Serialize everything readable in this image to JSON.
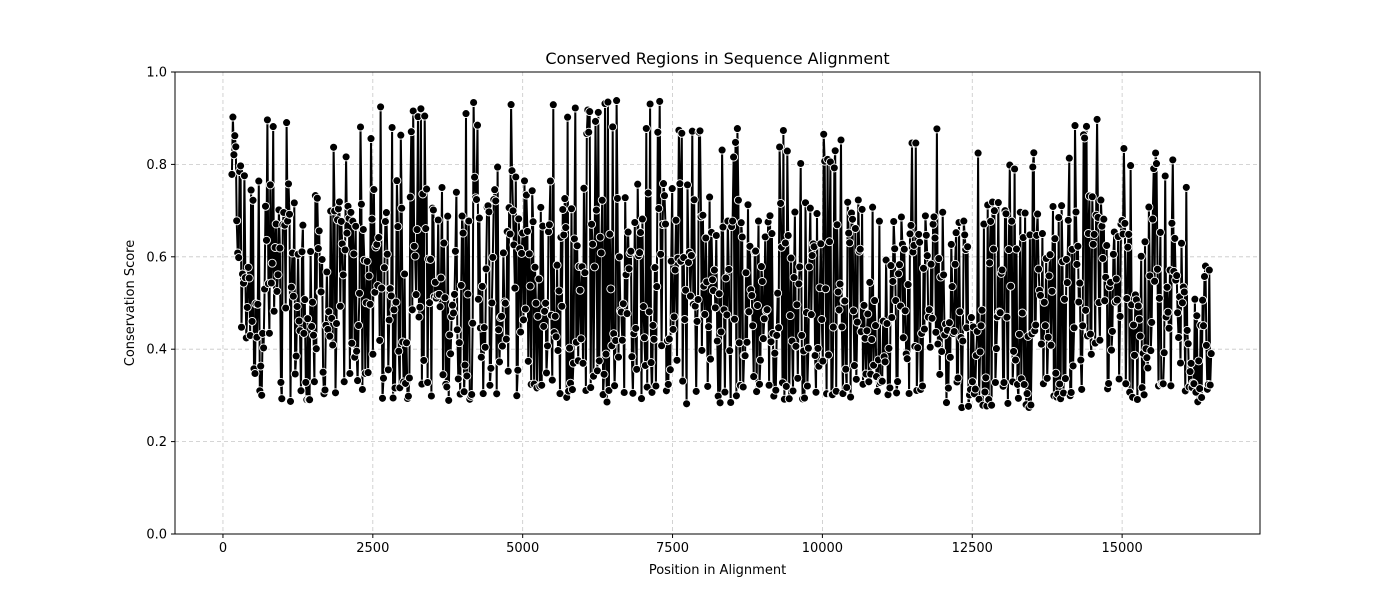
{
  "chart_data": {
    "type": "scatter",
    "title": "Conserved Regions in Sequence Alignment",
    "xlabel": "Position in Alignment",
    "ylabel": "Conservation Score",
    "xlim": [
      -800,
      17300
    ],
    "ylim": [
      0.0,
      1.0
    ],
    "xticks": [
      0,
      2500,
      5000,
      7500,
      10000,
      12500,
      15000
    ],
    "yticks": [
      0.0,
      0.2,
      0.4,
      0.6,
      0.8,
      1.0
    ],
    "x_range": [
      150,
      16500
    ],
    "grid": true,
    "marker_style": "lines-with-circle-markers",
    "series": [
      {
        "color": "#000000",
        "edge_color": "#ffffff",
        "envelope": [
          {
            "x": 150,
            "min": 0.72,
            "max": 0.97
          },
          {
            "x": 350,
            "min": 0.35,
            "max": 1.0
          },
          {
            "x": 500,
            "min": 0.3,
            "max": 0.96
          },
          {
            "x": 1000,
            "min": 0.28,
            "max": 0.92
          },
          {
            "x": 2000,
            "min": 0.29,
            "max": 0.86
          },
          {
            "x": 2500,
            "min": 0.29,
            "max": 0.94
          },
          {
            "x": 3500,
            "min": 0.28,
            "max": 0.92
          },
          {
            "x": 4600,
            "min": 0.29,
            "max": 0.96
          },
          {
            "x": 5300,
            "min": 0.29,
            "max": 0.94
          },
          {
            "x": 6700,
            "min": 0.28,
            "max": 0.94
          },
          {
            "x": 7500,
            "min": 0.28,
            "max": 0.94
          },
          {
            "x": 8500,
            "min": 0.28,
            "max": 0.89
          },
          {
            "x": 10000,
            "min": 0.29,
            "max": 0.87
          },
          {
            "x": 11000,
            "min": 0.3,
            "max": 0.86
          },
          {
            "x": 12500,
            "min": 0.27,
            "max": 0.89
          },
          {
            "x": 13200,
            "min": 0.27,
            "max": 0.85
          },
          {
            "x": 14500,
            "min": 0.29,
            "max": 0.91
          },
          {
            "x": 16000,
            "min": 0.28,
            "max": 0.81
          },
          {
            "x": 16500,
            "min": 0.28,
            "max": 0.74
          }
        ]
      }
    ]
  }
}
